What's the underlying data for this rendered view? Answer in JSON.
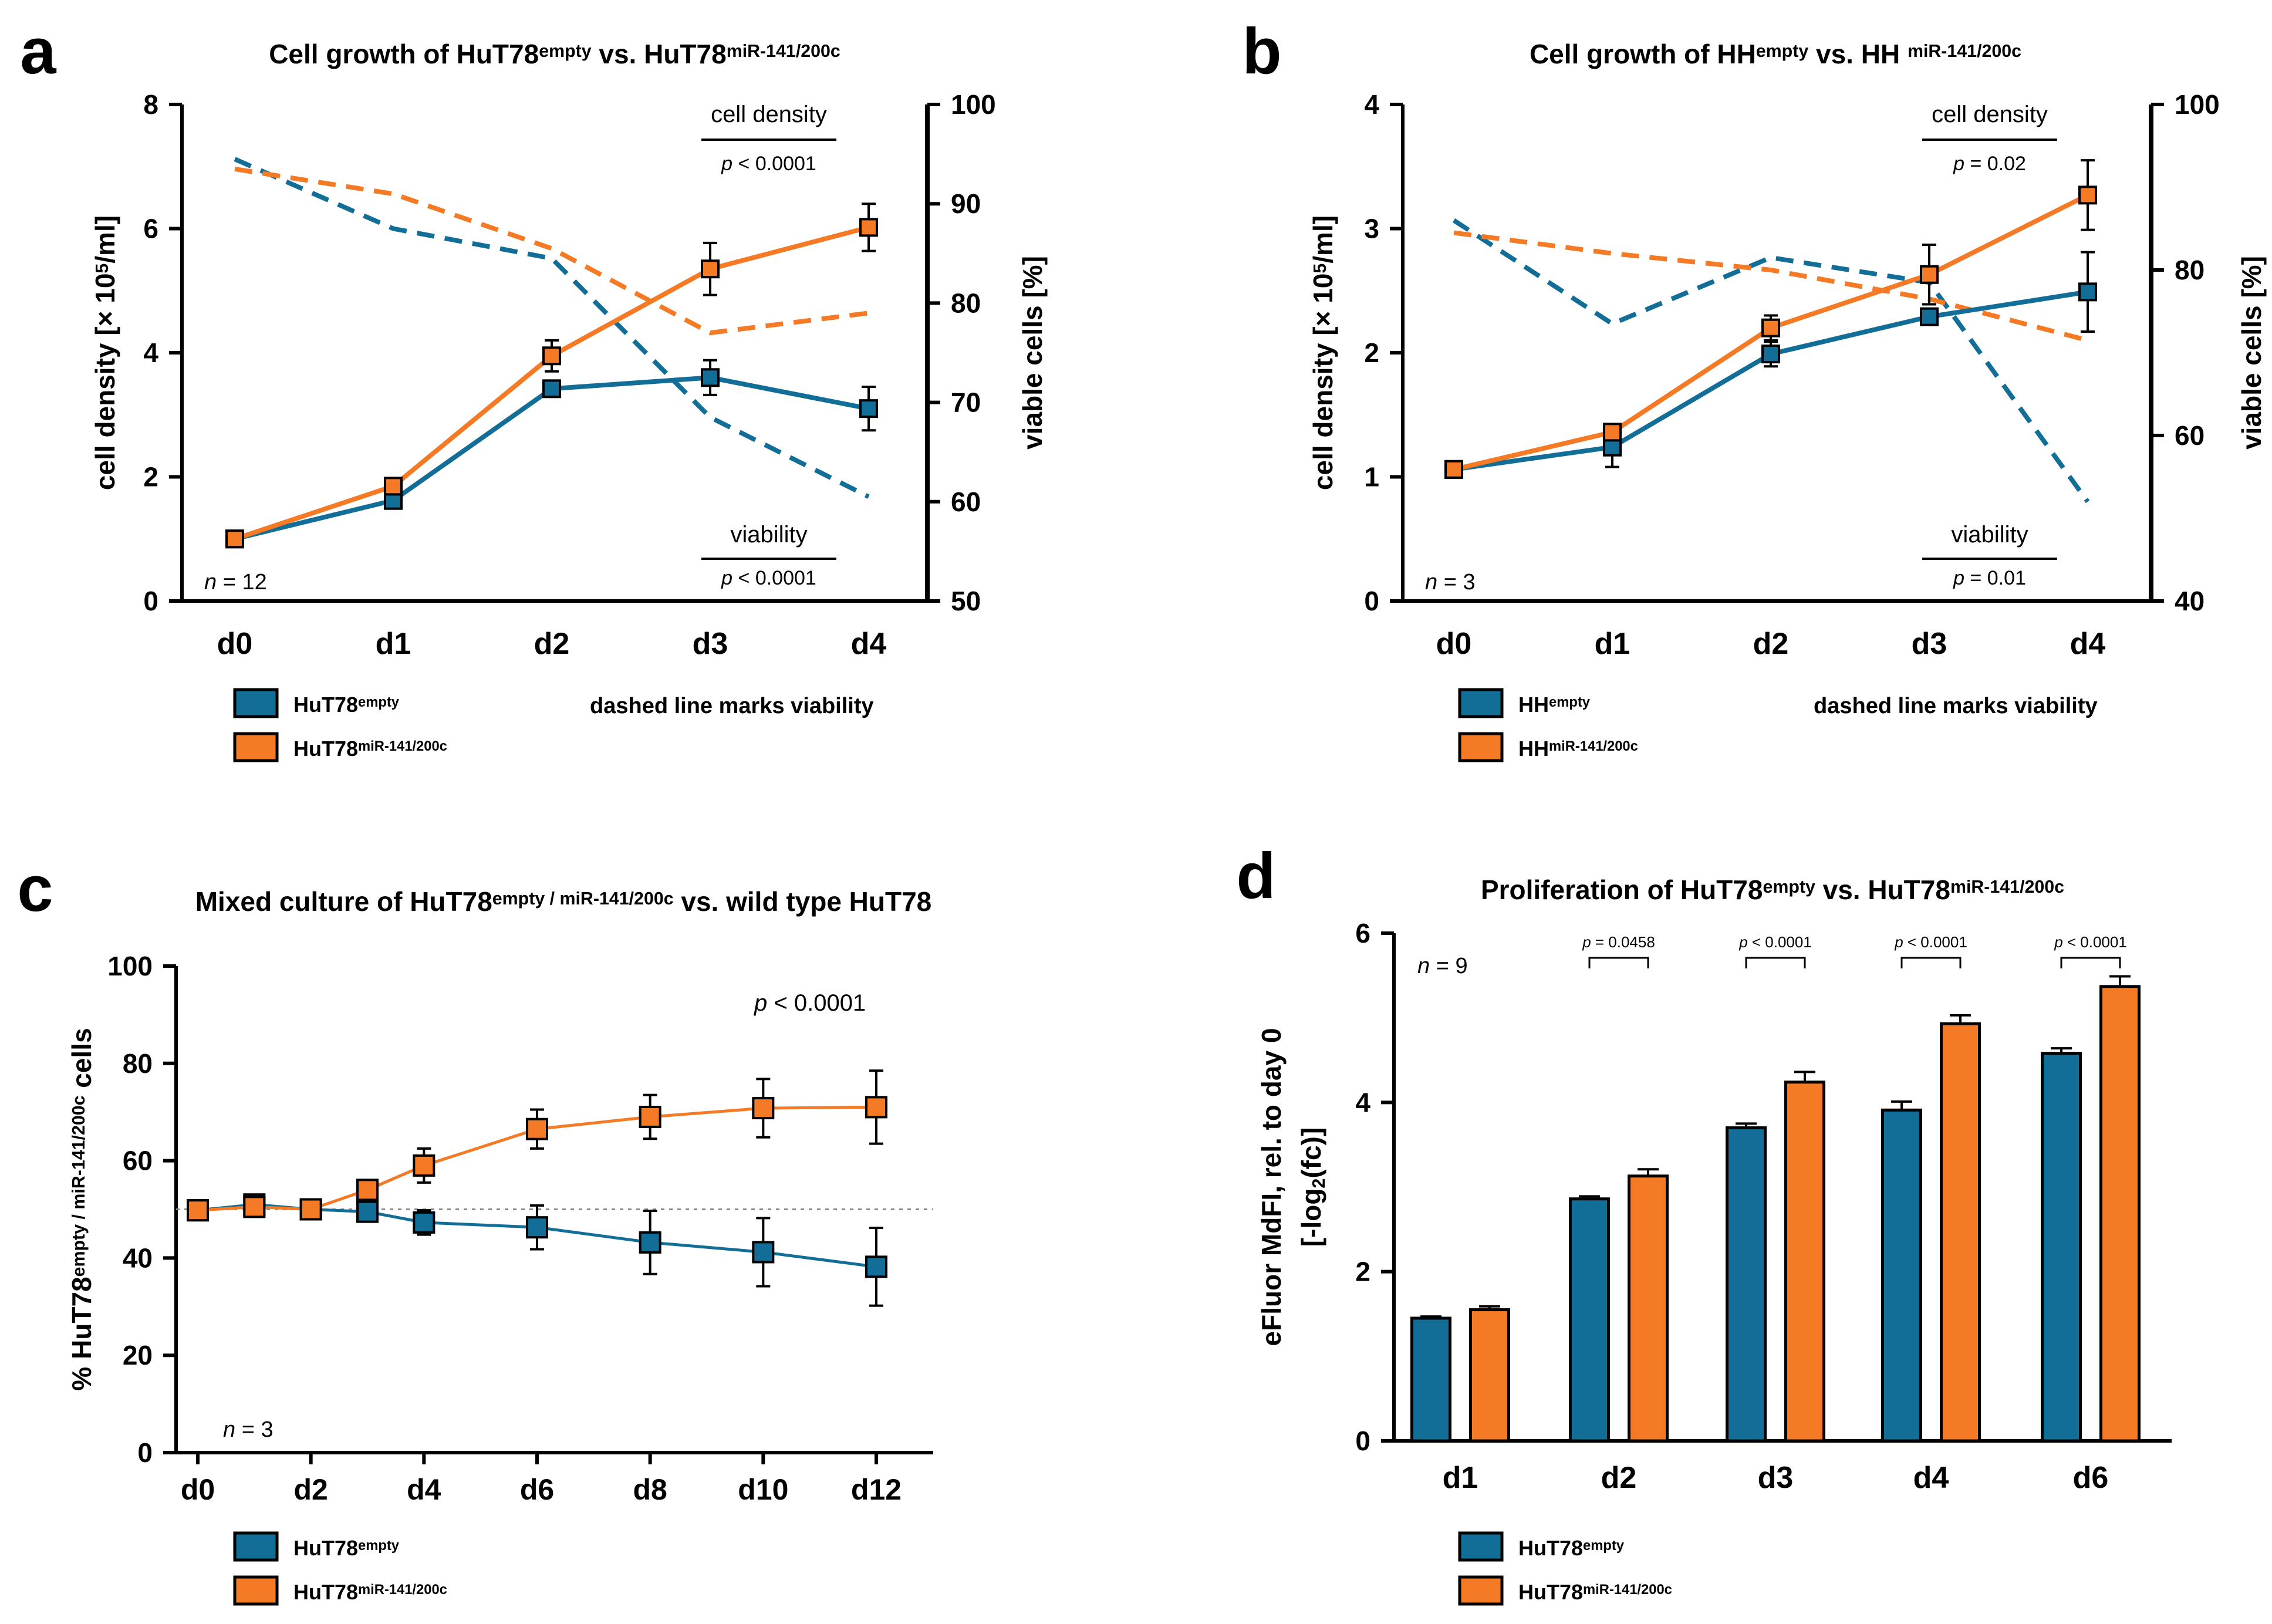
{
  "colors": {
    "empty": "#126e96",
    "mir": "#f47a25",
    "axis": "#000000",
    "ref": "#888888"
  },
  "chart_data": [
    {
      "panel_letter": "a",
      "type": "line",
      "title": "Cell growth of HuT78",
      "title_sup1": "empty",
      "title_mid": " vs. HuT78",
      "title_sup2": "miR-141/200c",
      "categories": [
        "d0",
        "d1",
        "d2",
        "d3",
        "d4"
      ],
      "ylabel": "cell density [× 10",
      "ylabel_sup": "5",
      "ylabel_end": "/ml]",
      "y2label": "viable cells [%]",
      "ylim": [
        0,
        8
      ],
      "yticks": [
        0,
        2,
        4,
        6,
        8
      ],
      "y2lim": [
        50,
        100
      ],
      "y2ticks": [
        50,
        60,
        70,
        80,
        90,
        100
      ],
      "series": [
        {
          "name": "HuT78",
          "sup": "empty",
          "color_key": "empty",
          "values": [
            1.0,
            1.62,
            3.42,
            3.6,
            3.1
          ],
          "errors": [
            0.05,
            0.08,
            0.12,
            0.28,
            0.35
          ]
        },
        {
          "name": "HuT78",
          "sup": "miR-141/200c",
          "color_key": "mir",
          "values": [
            1.0,
            1.85,
            3.95,
            5.35,
            6.02
          ],
          "errors": [
            0.05,
            0.1,
            0.25,
            0.42,
            0.38
          ]
        }
      ],
      "viability": [
        {
          "color_key": "empty",
          "values": [
            94.5,
            87.5,
            84.5,
            68.5,
            60.5
          ]
        },
        {
          "color_key": "mir",
          "values": [
            93.5,
            91.0,
            85.5,
            77.0,
            79.0
          ]
        }
      ],
      "annotations": {
        "top_label": "cell density",
        "top_p": "p",
        "top_p_value": " < 0.0001",
        "bottom_label": "viability",
        "bottom_p": "p",
        "bottom_p_value": " < 0.0001",
        "n_label": "n",
        "n_value": " = 12",
        "legend_note": "dashed line marks viability"
      }
    },
    {
      "panel_letter": "b",
      "type": "line",
      "title": "Cell growth of HH",
      "title_sup1": "empty",
      "title_mid": " vs. HH ",
      "title_sup2": "miR-141/200c",
      "categories": [
        "d0",
        "d1",
        "d2",
        "d3",
        "d4"
      ],
      "ylabel": "cell density [× 10",
      "ylabel_sup": "5",
      "ylabel_end": "/ml]",
      "y2label": "viable cells [%]",
      "ylim": [
        0,
        4
      ],
      "yticks": [
        0,
        1,
        2,
        3,
        4
      ],
      "y2lim": [
        40,
        100
      ],
      "y2ticks": [
        40,
        60,
        80,
        100
      ],
      "series": [
        {
          "name": "HH",
          "sup": "empty",
          "color_key": "empty",
          "values": [
            1.06,
            1.24,
            1.99,
            2.29,
            2.49
          ],
          "errors": [
            0.03,
            0.16,
            0.1,
            0.06,
            0.32
          ]
        },
        {
          "name": "HH",
          "sup": "miR-141/200c",
          "color_key": "mir",
          "values": [
            1.06,
            1.36,
            2.2,
            2.63,
            3.27
          ],
          "errors": [
            0.03,
            0.06,
            0.1,
            0.24,
            0.28
          ]
        }
      ],
      "viability": [
        {
          "color_key": "empty",
          "values": [
            86.0,
            73.5,
            81.5,
            78.5,
            52.0
          ]
        },
        {
          "color_key": "mir",
          "values": [
            84.5,
            82.0,
            80.0,
            76.5,
            71.5
          ]
        }
      ],
      "annotations": {
        "top_label": "cell density",
        "top_p": "p",
        "top_p_value": " = 0.02",
        "bottom_label": "viability",
        "bottom_p": "p",
        "bottom_p_value": " = 0.01",
        "n_label": "n",
        "n_value": " = 3",
        "legend_note": "dashed line marks viability"
      }
    },
    {
      "panel_letter": "c",
      "type": "line",
      "title": "Mixed culture of HuT78",
      "title_sup1": "empty / miR-141/200c",
      "title_mid": " vs. wild type HuT78",
      "xticks": [
        "d0",
        "d2",
        "d4",
        "d6",
        "d8",
        "d10",
        "d12"
      ],
      "x_days": [
        0,
        1,
        2,
        3,
        4,
        6,
        8,
        10,
        12
      ],
      "ylabel": "% HuT78",
      "ylabel_sup": "empty / miR-141/200c",
      "ylabel_end": " cells",
      "ylim": [
        0,
        100
      ],
      "yticks": [
        0,
        20,
        40,
        60,
        80,
        100
      ],
      "reference_line": 50,
      "series": [
        {
          "name": "HuT78",
          "sup": "empty",
          "color_key": "empty",
          "values": [
            49.8,
            51.0,
            50.0,
            49.5,
            47.3,
            46.3,
            43.2,
            41.2,
            38.2
          ],
          "errors": [
            1.0,
            1.5,
            1.0,
            1.5,
            2.5,
            4.5,
            6.5,
            7.0,
            8.0
          ]
        },
        {
          "name": "HuT78",
          "sup": "miR-141/200c",
          "color_key": "mir",
          "values": [
            49.8,
            50.5,
            50.0,
            54.0,
            59.0,
            66.5,
            69.0,
            70.8,
            71.0
          ],
          "errors": [
            1.0,
            1.5,
            1.0,
            1.5,
            3.5,
            4.0,
            4.5,
            6.0,
            7.5
          ]
        }
      ],
      "annotations": {
        "p": "p",
        "p_value": "  < 0.0001",
        "n_label": "n",
        "n_value": " = 3"
      }
    },
    {
      "panel_letter": "d",
      "type": "bar",
      "title": "Proliferation of HuT78",
      "title_sup1": "empty",
      "title_mid": " vs. HuT78",
      "title_sup2": "miR-141/200c",
      "categories": [
        "d1",
        "d2",
        "d3",
        "d4",
        "d6"
      ],
      "ylabel_line1": "eFluor MdFI, rel. to day 0",
      "ylabel_line2_a": "[-log",
      "ylabel_line2_sub": "2",
      "ylabel_line2_b": "(fc)]",
      "ylim": [
        0,
        6
      ],
      "yticks": [
        0,
        2,
        4,
        6
      ],
      "series": [
        {
          "name": "HuT78",
          "sup": "empty",
          "color_key": "empty",
          "values": [
            1.45,
            2.86,
            3.7,
            3.91,
            4.58
          ],
          "errors": [
            0.02,
            0.03,
            0.05,
            0.1,
            0.06
          ]
        },
        {
          "name": "HuT78",
          "sup": "miR-141/200c",
          "color_key": "mir",
          "values": [
            1.55,
            3.13,
            4.24,
            4.93,
            5.37
          ],
          "errors": [
            0.04,
            0.08,
            0.12,
            0.1,
            0.12
          ]
        }
      ],
      "p_values": [
        null,
        "p = 0.0458",
        "p < 0.0001",
        "p < 0.0001",
        "p < 0.0001"
      ],
      "annotations": {
        "n_label": "n",
        "n_value": " = 9"
      }
    }
  ]
}
